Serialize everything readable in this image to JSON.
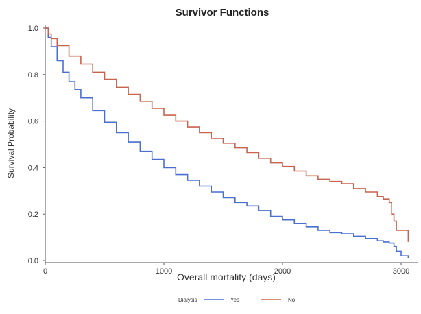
{
  "chart_data": {
    "type": "line",
    "title": "Survivor Functions",
    "xlabel": "Overall mortality (days)",
    "ylabel": "Survival Probability",
    "xlim": [
      0,
      3100
    ],
    "ylim": [
      0,
      1.0
    ],
    "xticks": [
      "0",
      "1000",
      "2000",
      "3000"
    ],
    "yticks": [
      "0.0",
      "0.2",
      "0.4",
      "0.6",
      "0.8",
      "1.0"
    ],
    "grid": false,
    "legend_title": "Dialysis",
    "legend_position": "bottom-center",
    "series": [
      {
        "name": "Yes",
        "color": "#4a6fd1",
        "step": true,
        "x": [
          0,
          25,
          50,
          100,
          150,
          200,
          250,
          300,
          400,
          500,
          600,
          700,
          800,
          900,
          1000,
          1100,
          1200,
          1300,
          1400,
          1500,
          1600,
          1700,
          1800,
          1900,
          2000,
          2100,
          2200,
          2300,
          2400,
          2500,
          2600,
          2700,
          2800,
          2850,
          2900,
          2940,
          2960,
          3000,
          3060
        ],
        "y": [
          1.0,
          0.96,
          0.92,
          0.86,
          0.81,
          0.77,
          0.735,
          0.7,
          0.645,
          0.595,
          0.55,
          0.51,
          0.47,
          0.435,
          0.4,
          0.37,
          0.345,
          0.32,
          0.295,
          0.27,
          0.25,
          0.235,
          0.215,
          0.19,
          0.175,
          0.16,
          0.145,
          0.13,
          0.12,
          0.115,
          0.105,
          0.095,
          0.085,
          0.08,
          0.075,
          0.06,
          0.04,
          0.02,
          0.01
        ]
      },
      {
        "name": "No",
        "color": "#c8644e",
        "step": true,
        "x": [
          0,
          25,
          50,
          100,
          200,
          300,
          400,
          500,
          600,
          700,
          800,
          900,
          1000,
          1100,
          1200,
          1300,
          1400,
          1500,
          1600,
          1700,
          1800,
          1900,
          2000,
          2100,
          2200,
          2300,
          2400,
          2500,
          2600,
          2700,
          2800,
          2850,
          2900,
          2920,
          2940,
          2960,
          3040,
          3060
        ],
        "y": [
          1.0,
          0.975,
          0.955,
          0.925,
          0.88,
          0.845,
          0.81,
          0.78,
          0.745,
          0.715,
          0.685,
          0.655,
          0.625,
          0.6,
          0.575,
          0.55,
          0.525,
          0.505,
          0.485,
          0.465,
          0.44,
          0.42,
          0.405,
          0.385,
          0.365,
          0.35,
          0.34,
          0.33,
          0.31,
          0.295,
          0.275,
          0.265,
          0.25,
          0.2,
          0.17,
          0.13,
          0.13,
          0.08
        ]
      }
    ]
  }
}
